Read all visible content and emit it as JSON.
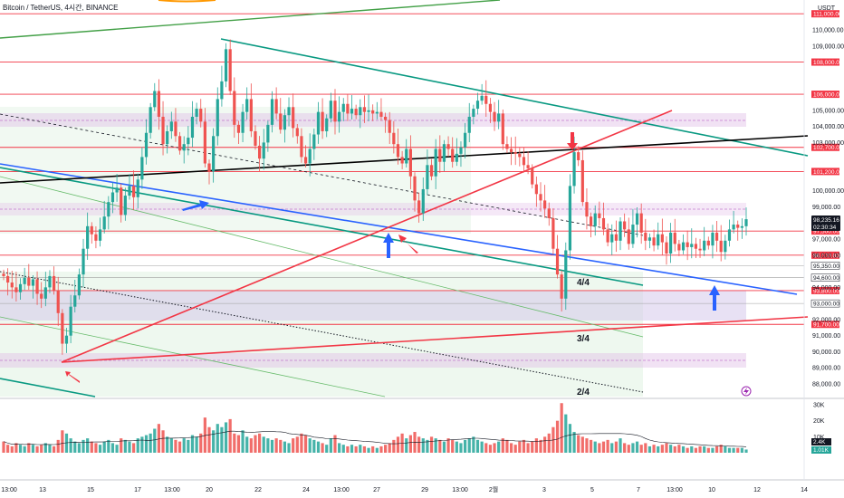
{
  "header": {
    "symbol_line": "Bitcoin / TetherUS, 4시간, BINANCE",
    "quote_ccy": "USDT"
  },
  "colors": {
    "up": "#26a69a",
    "down": "#ef5350",
    "level": "#f23645",
    "trend_green": "#089981",
    "trend_blue": "#2962ff",
    "trend_black": "#000000",
    "zone_pink": "#e1bee7",
    "zone_green": "#c8e6c9"
  },
  "chart_data": {
    "type": "candlestick",
    "ylim": [
      87000,
      113000
    ],
    "y_ticks": [
      "88,000.00",
      "89,000.00",
      "90,000.00",
      "91,000.00",
      "92,000.00",
      "94,000.00",
      "96,000.00",
      "97,000.00",
      "99,000.00",
      "100,000.00",
      "103,000.00",
      "104,000.00",
      "105,000.00",
      "109,000.00",
      "110,000.00"
    ],
    "x_ticks": [
      "13:00",
      "13",
      "15",
      "17",
      "13:00",
      "20",
      "22",
      "24",
      "13:00",
      "27",
      "29",
      "13:00",
      "2월",
      "3",
      "5",
      "7",
      "13:00",
      "10",
      "12",
      "14"
    ],
    "levels": [
      {
        "price": 111000,
        "label": "111,000.00"
      },
      {
        "price": 108000,
        "label": "108,000.00"
      },
      {
        "price": 106000,
        "label": "106,000.00"
      },
      {
        "price": 102700,
        "label": "102,700.00"
      },
      {
        "price": 101200,
        "label": "101,200.00"
      },
      {
        "price": 97500,
        "label": "97,500.00"
      },
      {
        "price": 96000,
        "label": "96,000.00"
      },
      {
        "price": 93800,
        "label": "93,800.00"
      },
      {
        "price": 91700,
        "label": "91,700.00"
      }
    ],
    "gray_levels": [
      {
        "price": 95350,
        "label": "95,350.00"
      },
      {
        "price": 94600,
        "label": "94,600.00"
      },
      {
        "price": 93000,
        "label": "93,000.00"
      }
    ],
    "current": {
      "price": "98,235.16",
      "countdown": "02:30:34"
    },
    "annotations": [
      "4/4",
      "3/4",
      "2/4"
    ],
    "volume": {
      "ticks": [
        "30K",
        "20K",
        "10K"
      ],
      "last_labels": [
        "2.4K",
        "1.01K"
      ]
    },
    "closes": [
      94700,
      94300,
      94000,
      93700,
      94200,
      94600,
      94100,
      94500,
      93600,
      93300,
      94000,
      94700,
      93800,
      92400,
      90500,
      91000,
      92800,
      93500,
      94800,
      96400,
      97800,
      97300,
      96900,
      97600,
      98400,
      99300,
      99900,
      100200,
      98500,
      99700,
      100300,
      99600,
      100700,
      102100,
      103600,
      105200,
      106200,
      104600,
      102900,
      103700,
      104300,
      103400,
      102500,
      102900,
      103300,
      104600,
      105100,
      104300,
      101700,
      101200,
      103400,
      105700,
      106800,
      108800,
      106200,
      104100,
      103600,
      104900,
      105700,
      103700,
      102800,
      102000,
      103000,
      104100,
      105700,
      104800,
      103800,
      104700,
      105200,
      103900,
      103400,
      102100,
      101700,
      102600,
      103500,
      104900,
      103700,
      104500,
      105600,
      104300,
      104900,
      105400,
      104800,
      105100,
      104700,
      105200,
      104900,
      105000,
      104800,
      104900,
      104600,
      104400,
      103600,
      102900,
      102100,
      101700,
      102600,
      100900,
      99400,
      98600,
      100100,
      101600,
      100900,
      102600,
      101800,
      102900,
      102600,
      101800,
      102300,
      102700,
      103600,
      104600,
      105100,
      105600,
      105900,
      105400,
      104900,
      104300,
      104800,
      102900,
      102600,
      102400,
      102300,
      102100,
      101600,
      101400,
      100400,
      99800,
      99400,
      98900,
      98300,
      96400,
      94800,
      93300,
      96300,
      100300,
      102400,
      101900,
      99300,
      98400,
      97800,
      98600,
      98300,
      97600,
      96800,
      97300,
      96900,
      98100,
      97600,
      96700,
      97900,
      98600,
      97400,
      96900,
      97100,
      96600,
      97300,
      96800,
      96100,
      97400,
      96700,
      96300,
      96800,
      96500,
      96700,
      96400,
      96300,
      96900,
      96600,
      97400,
      96900,
      96200,
      96900,
      97600,
      97900,
      97700,
      97800,
      98235
    ],
    "volumes": [
      7,
      5,
      4,
      6,
      5,
      4,
      6,
      5,
      4,
      5,
      6,
      5,
      4,
      8,
      14,
      12,
      9,
      7,
      6,
      8,
      9,
      7,
      6,
      5,
      7,
      8,
      6,
      5,
      9,
      8,
      7,
      6,
      9,
      10,
      11,
      12,
      15,
      18,
      14,
      10,
      9,
      8,
      7,
      9,
      8,
      11,
      10,
      12,
      22,
      16,
      14,
      18,
      16,
      19,
      21,
      12,
      11,
      14,
      10,
      9,
      11,
      12,
      10,
      9,
      8,
      9,
      8,
      7,
      6,
      9,
      10,
      12,
      11,
      9,
      8,
      7,
      6,
      5,
      9,
      11,
      6,
      5,
      4,
      5,
      4,
      5,
      4,
      3,
      4,
      3,
      4,
      5,
      6,
      8,
      10,
      12,
      9,
      11,
      13,
      10,
      9,
      8,
      10,
      9,
      8,
      7,
      9,
      8,
      7,
      6,
      8,
      9,
      10,
      8,
      7,
      6,
      5,
      6,
      7,
      9,
      8,
      6,
      5,
      7,
      8,
      6,
      7,
      9,
      8,
      10,
      12,
      16,
      20,
      31,
      24,
      18,
      13,
      11,
      10,
      9,
      8,
      7,
      6,
      7,
      8,
      6,
      7,
      9,
      6,
      5,
      6,
      7,
      5,
      6,
      4,
      5,
      4,
      5,
      6,
      5,
      4,
      5,
      4,
      3,
      4,
      3,
      4,
      4,
      3,
      3,
      4,
      5,
      4,
      3,
      3,
      3,
      3,
      2
    ]
  }
}
